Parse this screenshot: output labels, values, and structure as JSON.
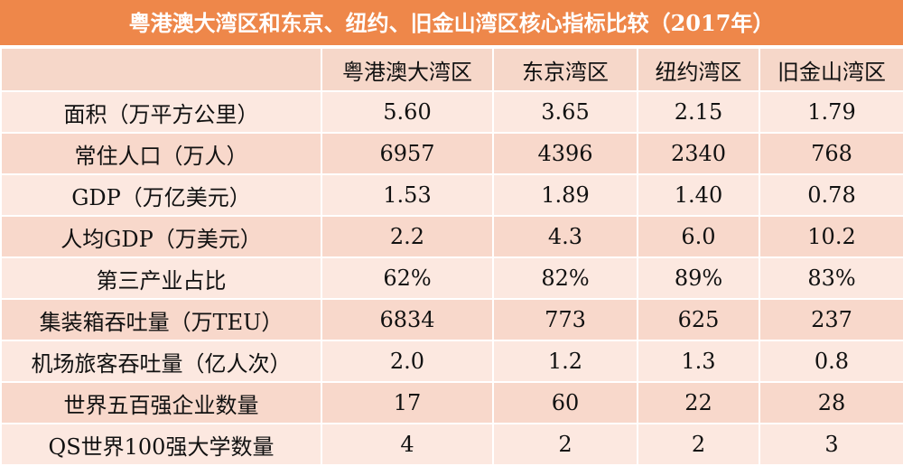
{
  "title": "粤港澳大湾区和东京、纽约、旧金山湾区核心指标比较（2017年）",
  "table": {
    "header": [
      "",
      "粤港澳大湾区",
      "东京湾区",
      "纽约湾区",
      "旧金山湾区"
    ],
    "rows": [
      [
        "面积（万平方公里）",
        "5.60",
        "3.65",
        "2.15",
        "1.79"
      ],
      [
        "常住人口（万人）",
        "6957",
        "4396",
        "2340",
        "768"
      ],
      [
        "GDP（万亿美元）",
        "1.53",
        "1.89",
        "1.40",
        "0.78"
      ],
      [
        "人均GDP（万美元）",
        "2.2",
        "4.3",
        "6.0",
        "10.2"
      ],
      [
        "第三产业占比",
        "62%",
        "82%",
        "89%",
        "83%"
      ],
      [
        "集装箱吞吐量（万TEU）",
        "6834",
        "773",
        "625",
        "237"
      ],
      [
        "机场旅客吞吐量（亿人次）",
        "2.0",
        "1.2",
        "1.3",
        "0.8"
      ],
      [
        "世界五百强企业数量",
        "17",
        "60",
        "22",
        "28"
      ],
      [
        "QS世界100强大学数量",
        "4",
        "2",
        "2",
        "3"
      ]
    ]
  }
}
